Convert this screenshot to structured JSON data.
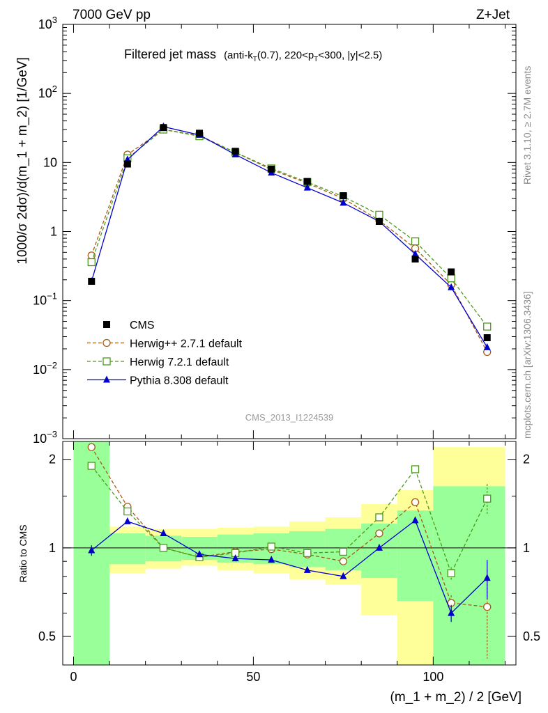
{
  "header": {
    "energy": "7000 GeV pp",
    "process": "Z+Jet",
    "rivet": "Rivet 3.1.10, ≥ 2.7M events",
    "mcplots": "mcplots.cern.ch [arXiv:1306.3436]",
    "analysis": "CMS_2013_I1224539"
  },
  "chart_data": [
    {
      "panel": "main",
      "type": "scatter",
      "title_main": "Filtered jet mass",
      "title_sub": "(anti-kT(0.7), 220<pT<300, |y|<2.5)",
      "ylabel": "1000/σ 2dσ)/d(m_1 + m_2) [1/GeV]",
      "yscale": "log",
      "ylim": [
        0.001,
        1000
      ],
      "xlim": [
        -3,
        123
      ],
      "ytick_labels": [
        "10^-3",
        "10^-2",
        "10^-1",
        "1",
        "10",
        "10^2",
        "10^3"
      ],
      "legend": "lower-left",
      "x": [
        5,
        15,
        25,
        35,
        45,
        55,
        65,
        75,
        85,
        95,
        105,
        115
      ],
      "series": [
        {
          "name": "CMS",
          "style": "data",
          "color": "#000000",
          "marker": "square-filled",
          "values": [
            0.19,
            9.5,
            32,
            26.5,
            14.5,
            8.0,
            5.3,
            3.3,
            1.4,
            0.4,
            0.26,
            0.029
          ]
        },
        {
          "name": "Herwig++ 2.7.1 default",
          "style": "dashed",
          "color": "#a65b14",
          "marker": "circle-open",
          "values": [
            0.45,
            13,
            30,
            24.5,
            14,
            7.9,
            5.0,
            3.0,
            1.45,
            0.57,
            0.17,
            0.018
          ]
        },
        {
          "name": "Herwig 7.2.1 default",
          "style": "dashed",
          "color": "#4c9a1c",
          "marker": "square-open",
          "values": [
            0.36,
            11.5,
            30,
            24,
            14,
            8.2,
            5.2,
            3.2,
            1.75,
            0.72,
            0.21,
            0.042
          ]
        },
        {
          "name": "Pythia 8.308 default",
          "style": "solid",
          "color": "#0000cc",
          "marker": "triangle-filled",
          "values": [
            0.19,
            11,
            33,
            25,
            13,
            7.1,
            4.3,
            2.6,
            1.4,
            0.47,
            0.155,
            0.021
          ]
        }
      ]
    },
    {
      "panel": "ratio",
      "type": "line",
      "ylabel": "Ratio to CMS",
      "yscale": "log",
      "ylim": [
        0.4,
        2.3
      ],
      "xlim": [
        -3,
        123
      ],
      "xlabel": "(m_1 + m_2) / 2 [GeV]",
      "xtick_labels": [
        "0",
        "50",
        "100"
      ],
      "ytick_labels": [
        "0.5",
        "1",
        "2"
      ],
      "x": [
        5,
        15,
        25,
        35,
        45,
        55,
        65,
        75,
        85,
        95,
        105,
        115
      ],
      "bands": {
        "bins": [
          [
            0,
            10
          ],
          [
            10,
            20
          ],
          [
            20,
            30
          ],
          [
            30,
            40
          ],
          [
            40,
            50
          ],
          [
            50,
            60
          ],
          [
            60,
            70
          ],
          [
            70,
            80
          ],
          [
            80,
            90
          ],
          [
            90,
            100
          ],
          [
            100,
            120
          ]
        ],
        "stat_color": "#99ff99",
        "total_color": "#ffff99",
        "stat": [
          [
            0.1,
            2.3
          ],
          [
            0.88,
            1.12
          ],
          [
            0.9,
            1.1
          ],
          [
            0.91,
            1.09
          ],
          [
            0.89,
            1.11
          ],
          [
            0.88,
            1.12
          ],
          [
            0.86,
            1.14
          ],
          [
            0.84,
            1.16
          ],
          [
            0.79,
            1.21
          ],
          [
            0.66,
            1.34
          ],
          [
            0.4,
            1.62
          ]
        ],
        "total": [
          [
            0.1,
            2.3
          ],
          [
            0.82,
            1.18
          ],
          [
            0.85,
            1.16
          ],
          [
            0.87,
            1.16
          ],
          [
            0.84,
            1.17
          ],
          [
            0.82,
            1.18
          ],
          [
            0.78,
            1.23
          ],
          [
            0.75,
            1.27
          ],
          [
            0.59,
            1.41
          ],
          [
            0.4,
            1.57
          ],
          [
            0.4,
            2.2
          ]
        ]
      },
      "series": [
        {
          "name": "Herwig++ 2.7.1 default",
          "style": "dashed",
          "color": "#a65b14",
          "marker": "circle-open",
          "values": [
            2.2,
            1.38,
            1.0,
            0.93,
            0.97,
            0.99,
            0.95,
            0.9,
            1.12,
            1.43,
            0.65,
            0.63
          ],
          "errors": [
            0.03,
            0.03,
            0.01,
            0.01,
            0.01,
            0.01,
            0.01,
            0.01,
            0.02,
            0.04,
            0.04,
            0.21
          ]
        },
        {
          "name": "Herwig 7.2.1 default",
          "style": "dashed",
          "color": "#4c9a1c",
          "marker": "square-open",
          "values": [
            1.9,
            1.33,
            1.0,
            0.93,
            0.96,
            1.01,
            0.96,
            0.97,
            1.27,
            1.85,
            0.82,
            1.47
          ],
          "errors": [
            0.04,
            0.03,
            0.01,
            0.01,
            0.01,
            0.01,
            0.01,
            0.01,
            0.02,
            0.04,
            0.04,
            0.18
          ]
        },
        {
          "name": "Pythia 8.308 default",
          "style": "solid",
          "color": "#0000cc",
          "marker": "triangle-filled",
          "values": [
            0.98,
            1.23,
            1.12,
            0.95,
            0.92,
            0.91,
            0.84,
            0.8,
            1.0,
            1.24,
            0.6,
            0.79
          ],
          "errors": [
            0.04,
            0.02,
            0.01,
            0.01,
            0.01,
            0.01,
            0.01,
            0.01,
            0.01,
            0.03,
            0.04,
            0.12
          ]
        }
      ]
    }
  ]
}
